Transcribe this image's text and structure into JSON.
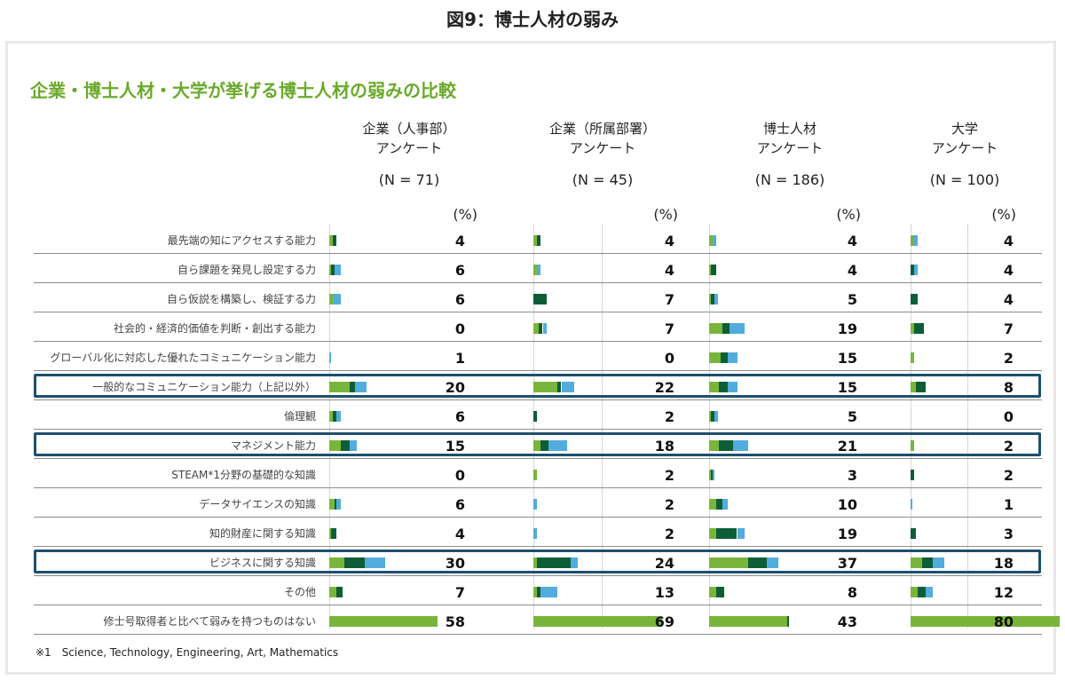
{
  "figure_title": "図9：博士人材の弱み",
  "panel_title": "企業・博士人材・大学が挙げる博士人材の弱みの比較",
  "footnote": "※1　Science, Technology, Engineering, Art, Mathematics",
  "pct_unit": "(%)",
  "colors": {
    "light_green": "#7ab53b",
    "dark_green": "#0d5e37",
    "light_blue": "#52acdd",
    "highlight_border": "#1e4f6e",
    "title_green": "#6aaa2a"
  },
  "chart_data": {
    "type": "bar",
    "stacked": true,
    "orientation": "horizontal",
    "title": "企業・博士人材・大学が挙げる博士人材の弱みの比較",
    "unit": "(%)",
    "highlighted_rows": [
      5,
      7,
      11
    ],
    "categories": [
      "最先端の知にアクセスする能力",
      "自ら課題を発見し設定する力",
      "自ら仮説を構築し、検証する力",
      "社会的・経済的価値を判断・創出する能力",
      "グローバル化に対応した優れたコミュニケーション能力",
      "一般的なコミュニケーション能力（上記以外）",
      "倫理観",
      "マネジメント能力",
      "STEAM*1分野の基礎的な知識",
      "データサイエンスの知識",
      "知的財産に関する知識",
      "ビジネスに関する知識",
      "その他",
      "修士号取得者と比べて弱みを持つものはない"
    ],
    "groups": [
      {
        "title_line1": "企業（人事部）",
        "title_line2": "アンケート",
        "n_label": "(N = 71)",
        "values": [
          4,
          6,
          6,
          0,
          1,
          20,
          6,
          15,
          0,
          6,
          4,
          30,
          7,
          58
        ],
        "segments": [
          [
            2,
            2,
            0
          ],
          [
            1,
            2,
            3
          ],
          [
            2,
            0,
            4
          ],
          [
            0,
            0,
            0
          ],
          [
            0,
            0,
            1
          ],
          [
            11,
            3,
            6
          ],
          [
            2,
            2,
            2
          ],
          [
            6,
            5,
            4
          ],
          [
            0,
            0,
            0
          ],
          [
            3,
            1,
            2
          ],
          [
            1,
            3,
            0
          ],
          [
            8,
            11,
            11
          ],
          [
            4,
            3,
            0
          ],
          [
            58,
            0,
            0
          ]
        ]
      },
      {
        "title_line1": "企業（所属部署）",
        "title_line2": "アンケート",
        "n_label": "(N = 45)",
        "values": [
          4,
          4,
          7,
          7,
          0,
          22,
          2,
          18,
          2,
          2,
          2,
          24,
          13,
          69
        ],
        "segments": [
          [
            2,
            2,
            0
          ],
          [
            2,
            0,
            2
          ],
          [
            0,
            7,
            0
          ],
          [
            3,
            2,
            2
          ],
          [
            0,
            0,
            0
          ],
          [
            13,
            2,
            7
          ],
          [
            0,
            2,
            0
          ],
          [
            4,
            4,
            10
          ],
          [
            2,
            0,
            0
          ],
          [
            0,
            0,
            2
          ],
          [
            0,
            0,
            2
          ],
          [
            2,
            18,
            4
          ],
          [
            2,
            2,
            9
          ],
          [
            69,
            0,
            0
          ]
        ]
      },
      {
        "title_line1": "博士人材",
        "title_line2": "アンケート",
        "n_label": "(N = 186)",
        "values": [
          4,
          4,
          5,
          19,
          15,
          15,
          5,
          21,
          3,
          10,
          19,
          37,
          8,
          43
        ],
        "segments": [
          [
            2,
            0,
            2
          ],
          [
            1,
            3,
            0
          ],
          [
            1,
            2,
            2
          ],
          [
            7,
            4,
            8
          ],
          [
            6,
            4,
            5
          ],
          [
            5,
            5,
            5
          ],
          [
            1,
            2,
            2
          ],
          [
            5,
            8,
            8
          ],
          [
            1,
            1,
            1
          ],
          [
            4,
            3,
            3
          ],
          [
            4,
            11,
            4
          ],
          [
            21,
            10,
            6
          ],
          [
            4,
            4,
            0
          ],
          [
            42,
            1,
            0
          ]
        ]
      },
      {
        "title_line1": "大学",
        "title_line2": "アンケート",
        "n_label": "(N = 100)",
        "values": [
          4,
          4,
          4,
          7,
          2,
          8,
          0,
          2,
          2,
          1,
          3,
          18,
          12,
          80
        ],
        "segments": [
          [
            2,
            0,
            2
          ],
          [
            0,
            2,
            2
          ],
          [
            0,
            4,
            0
          ],
          [
            2,
            5,
            0
          ],
          [
            2,
            0,
            0
          ],
          [
            3,
            5,
            0
          ],
          [
            0,
            0,
            0
          ],
          [
            2,
            0,
            0
          ],
          [
            0,
            2,
            0
          ],
          [
            0,
            0,
            1
          ],
          [
            0,
            3,
            0
          ],
          [
            6,
            6,
            6
          ],
          [
            4,
            4,
            4
          ],
          [
            80,
            0,
            0
          ]
        ]
      }
    ]
  }
}
